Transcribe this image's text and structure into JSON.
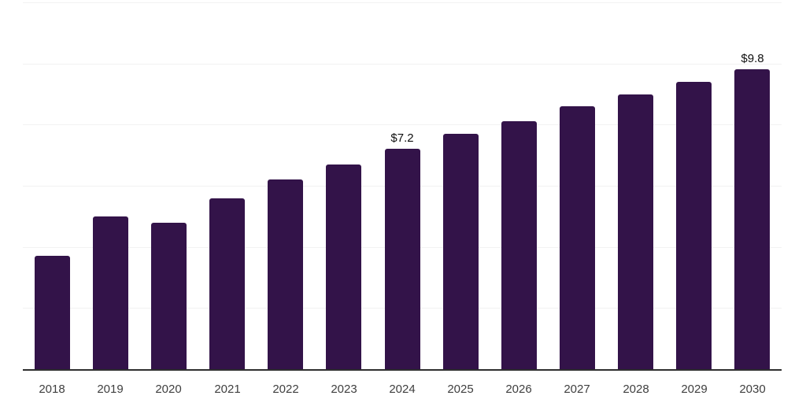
{
  "chart_data": {
    "type": "bar",
    "title": "",
    "xlabel": "",
    "ylabel": "",
    "categories": [
      "2018",
      "2019",
      "2020",
      "2021",
      "2022",
      "2023",
      "2024",
      "2025",
      "2026",
      "2027",
      "2028",
      "2029",
      "2030"
    ],
    "values": [
      3.7,
      5.0,
      4.8,
      5.6,
      6.2,
      6.7,
      7.2,
      7.7,
      8.1,
      8.6,
      9.0,
      9.4,
      9.8
    ],
    "value_labels": [
      "",
      "",
      "",
      "",
      "",
      "",
      "$7.2",
      "",
      "",
      "",
      "",
      "",
      "$9.8"
    ],
    "ylim": [
      0,
      12
    ],
    "gridline_step": 2,
    "grid": true,
    "legend": false,
    "colors": {
      "bar": "#331349",
      "gridline": "#f2f2f2",
      "axis": "#2e2e2e",
      "tick_label": "#3f3f3f",
      "value_label": "#0f0f0f",
      "background": "#ffffff"
    }
  }
}
